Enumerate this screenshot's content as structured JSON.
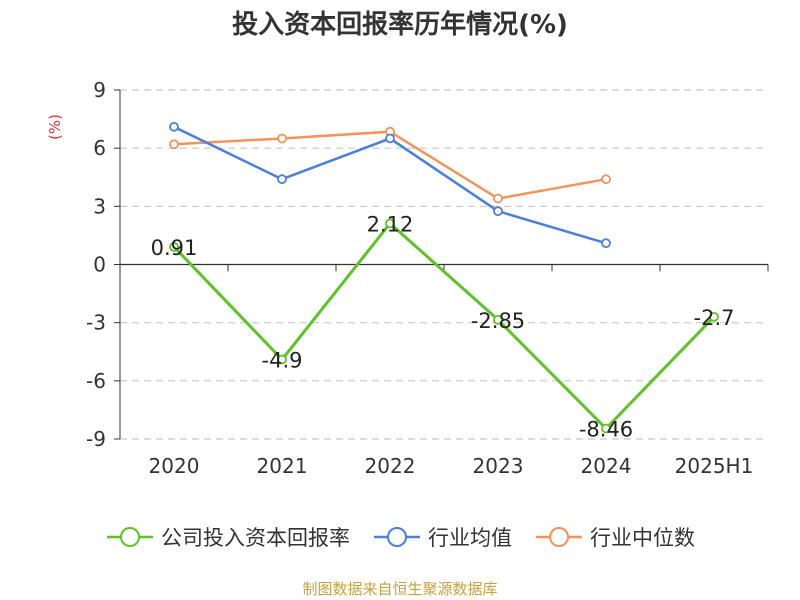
{
  "title": "投入资本回报率历年情况(%)",
  "source": "制图数据来自恒生聚源数据库",
  "colors": {
    "company": "#5ec228",
    "industry_avg": "#4a7fdb",
    "industry_median": "#f4935a",
    "ylabel": "#e03030",
    "source": "#c8a040"
  },
  "chart_data": {
    "type": "line",
    "title": "投入资本回报率历年情况(%)",
    "ylabel": "(%)",
    "xlabel": "",
    "categories": [
      "2020",
      "2021",
      "2022",
      "2023",
      "2024",
      "2025H1"
    ],
    "ylim": [
      -9,
      9
    ],
    "yticks": [
      9,
      6,
      3,
      0,
      -3,
      -6,
      -9
    ],
    "grid": true,
    "legend_position": "bottom",
    "series": [
      {
        "name": "公司投入资本回报率",
        "values": [
          0.91,
          -4.9,
          2.12,
          -2.85,
          -8.46,
          -2.7
        ],
        "labels": [
          "0.91",
          "-4.9",
          "2.12",
          "-2.85",
          "-8.46",
          "-2.7"
        ]
      },
      {
        "name": "行业均值",
        "values": [
          7.1,
          4.4,
          6.5,
          2.75,
          1.1,
          null
        ]
      },
      {
        "name": "行业中位数",
        "values": [
          6.2,
          6.5,
          6.85,
          3.4,
          4.4,
          null
        ]
      }
    ]
  }
}
